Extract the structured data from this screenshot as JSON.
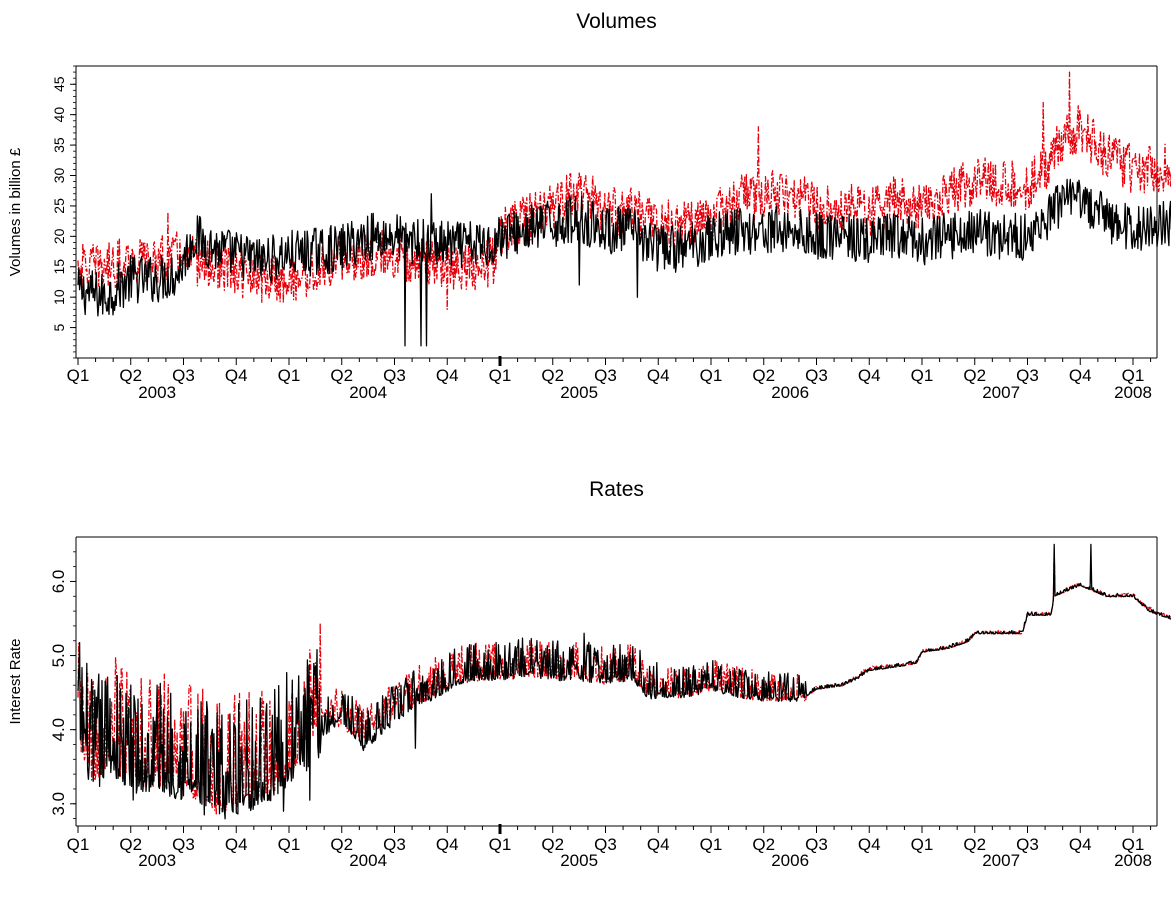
{
  "colors": {
    "primary_series": "#000000",
    "secondary_series": "#e8000b",
    "axis": "#000000",
    "background": "#ffffff"
  },
  "chart_data": [
    {
      "type": "line",
      "title": "Volumes",
      "xlabel": "",
      "ylabel": "Volumes in billion £",
      "ylim": [
        0,
        48
      ],
      "yticks": [
        5,
        10,
        15,
        20,
        25,
        30,
        35,
        40,
        45
      ],
      "ytick_orientation": "rotated",
      "grid": false,
      "legend": "none",
      "x_axis": {
        "quarter_labels": [
          "Q1",
          "Q2",
          "Q3",
          "Q4",
          "Q1",
          "Q2",
          "Q3",
          "Q4",
          "Q1",
          "Q2",
          "Q3",
          "Q4",
          "Q1",
          "Q2",
          "Q3",
          "Q4",
          "Q1",
          "Q2",
          "Q3",
          "Q4",
          "Q1"
        ],
        "year_labels": [
          {
            "label": "2003",
            "under_quarter": 1.5
          },
          {
            "label": "2004",
            "under_quarter": 5.5
          },
          {
            "label": "2005",
            "under_quarter": 9.5
          },
          {
            "label": "2006",
            "under_quarter": 13.5
          },
          {
            "label": "2007",
            "under_quarter": 17.5
          },
          {
            "label": "2008",
            "under_quarter": 20.0
          }
        ],
        "major_tick_quarter": 8,
        "range_quarters": [
          0,
          21.4
        ]
      },
      "series_meta": [
        {
          "color": "#000000",
          "dash": "solid"
        },
        {
          "color": "#e8000b",
          "dash": "dashdot"
        }
      ],
      "series": [
        {
          "values": [
            [
              0.1,
              11
            ],
            [
              0.5,
              10
            ],
            [
              1.0,
              13
            ],
            [
              1.5,
              13
            ],
            [
              1.9,
              14
            ],
            [
              2.2,
              20
            ],
            [
              2.6,
              18
            ],
            [
              3.0,
              17
            ],
            [
              3.5,
              16
            ],
            [
              4.0,
              17
            ],
            [
              4.5,
              17.5
            ],
            [
              5.0,
              18
            ],
            [
              5.5,
              20
            ],
            [
              6.0,
              20
            ],
            [
              6.5,
              19
            ],
            [
              7.0,
              18.5
            ],
            [
              7.5,
              18.5
            ],
            [
              7.9,
              19
            ],
            [
              8.0,
              20
            ],
            [
              8.5,
              21
            ],
            [
              9.0,
              22
            ],
            [
              9.5,
              23
            ],
            [
              10.0,
              21
            ],
            [
              10.5,
              21
            ],
            [
              11.0,
              18
            ],
            [
              11.5,
              18
            ],
            [
              12.0,
              20
            ],
            [
              12.5,
              21
            ],
            [
              13.0,
              21
            ],
            [
              13.5,
              21
            ],
            [
              14.0,
              20
            ],
            [
              14.5,
              20
            ],
            [
              15.0,
              19
            ],
            [
              15.5,
              20
            ],
            [
              16.0,
              19
            ],
            [
              16.5,
              20
            ],
            [
              17.0,
              21
            ],
            [
              17.5,
              20
            ],
            [
              18.0,
              20
            ],
            [
              18.3,
              22
            ],
            [
              18.6,
              25
            ],
            [
              19.0,
              26
            ],
            [
              19.5,
              23
            ],
            [
              20.0,
              21
            ],
            [
              20.5,
              22
            ],
            [
              21.0,
              22
            ],
            [
              21.3,
              24
            ]
          ],
          "spikes": [
            [
              6.2,
              2
            ],
            [
              6.5,
              2
            ],
            [
              6.6,
              2
            ],
            [
              6.7,
              27
            ],
            [
              9.5,
              12
            ],
            [
              10.6,
              10
            ]
          ]
        },
        {
          "values": [
            [
              0.1,
              15
            ],
            [
              0.5,
              15
            ],
            [
              1.0,
              16
            ],
            [
              1.5,
              16
            ],
            [
              1.9,
              17
            ],
            [
              2.2,
              16
            ],
            [
              2.6,
              15
            ],
            [
              3.0,
              14
            ],
            [
              3.5,
              13
            ],
            [
              4.0,
              13
            ],
            [
              4.5,
              14
            ],
            [
              5.0,
              16
            ],
            [
              5.5,
              17
            ],
            [
              6.0,
              17
            ],
            [
              6.5,
              16
            ],
            [
              7.0,
              15
            ],
            [
              7.5,
              15
            ],
            [
              7.9,
              16
            ],
            [
              8.0,
              21
            ],
            [
              8.5,
              23
            ],
            [
              9.0,
              25
            ],
            [
              9.5,
              28
            ],
            [
              10.0,
              24
            ],
            [
              10.5,
              24
            ],
            [
              11.0,
              22
            ],
            [
              11.5,
              22
            ],
            [
              12.0,
              23
            ],
            [
              12.5,
              26
            ],
            [
              13.0,
              27
            ],
            [
              13.5,
              27
            ],
            [
              14.0,
              25
            ],
            [
              14.5,
              25
            ],
            [
              15.0,
              24
            ],
            [
              15.5,
              26
            ],
            [
              16.0,
              25
            ],
            [
              16.5,
              27
            ],
            [
              17.0,
              29
            ],
            [
              17.5,
              29
            ],
            [
              18.0,
              28
            ],
            [
              18.3,
              31
            ],
            [
              18.6,
              35
            ],
            [
              19.0,
              38
            ],
            [
              19.5,
              33
            ],
            [
              20.0,
              31
            ],
            [
              20.5,
              31
            ],
            [
              21.0,
              33
            ],
            [
              21.3,
              35
            ]
          ],
          "spikes": [
            [
              1.7,
              24
            ],
            [
              7.0,
              8
            ],
            [
              12.9,
              38
            ],
            [
              18.3,
              42
            ],
            [
              18.8,
              47
            ]
          ]
        }
      ]
    },
    {
      "type": "line",
      "title": "Rates",
      "xlabel": "",
      "ylabel": "Interest Rate",
      "ylim": [
        2.7,
        6.6
      ],
      "yticks": [
        "3.0",
        "4.0",
        "5.0",
        "6.0"
      ],
      "ytick_orientation": "rotated",
      "grid": false,
      "legend": "none",
      "x_axis": {
        "quarter_labels": [
          "Q1",
          "Q2",
          "Q3",
          "Q4",
          "Q1",
          "Q2",
          "Q3",
          "Q4",
          "Q1",
          "Q2",
          "Q3",
          "Q4",
          "Q1",
          "Q2",
          "Q3",
          "Q4",
          "Q1",
          "Q2",
          "Q3",
          "Q4",
          "Q1"
        ],
        "year_labels": [
          {
            "label": "2003",
            "under_quarter": 1.5
          },
          {
            "label": "2004",
            "under_quarter": 5.5
          },
          {
            "label": "2005",
            "under_quarter": 9.5
          },
          {
            "label": "2006",
            "under_quarter": 13.5
          },
          {
            "label": "2007",
            "under_quarter": 17.5
          },
          {
            "label": "2008",
            "under_quarter": 20.0
          }
        ],
        "major_tick_quarter": 8,
        "range_quarters": [
          0,
          21.4
        ]
      },
      "series_meta": [
        {
          "color": "#000000",
          "dash": "solid"
        },
        {
          "color": "#e8000b",
          "dash": "dashdot"
        }
      ],
      "series": [
        {
          "values": [
            [
              0.0,
              4.2
            ],
            [
              0.3,
              3.4
            ],
            [
              0.6,
              3.8
            ],
            [
              1.0,
              3.4
            ],
            [
              1.5,
              3.5
            ],
            [
              2.0,
              3.4
            ],
            [
              2.3,
              3.3
            ],
            [
              2.6,
              3.1
            ],
            [
              3.0,
              3.2
            ],
            [
              3.5,
              3.3
            ],
            [
              4.0,
              3.6
            ],
            [
              4.5,
              3.9
            ],
            [
              5.0,
              4.2
            ],
            [
              5.4,
              3.8
            ],
            [
              5.9,
              4.1
            ],
            [
              6.4,
              4.4
            ],
            [
              6.8,
              4.5
            ],
            [
              7.2,
              4.7
            ],
            [
              7.6,
              4.75
            ],
            [
              8.0,
              4.75
            ],
            [
              8.5,
              4.8
            ],
            [
              9.0,
              4.75
            ],
            [
              9.5,
              4.75
            ],
            [
              10.0,
              4.7
            ],
            [
              10.5,
              4.75
            ],
            [
              10.8,
              4.5
            ],
            [
              11.2,
              4.5
            ],
            [
              11.6,
              4.5
            ],
            [
              12.0,
              4.6
            ],
            [
              12.5,
              4.5
            ],
            [
              13.0,
              4.45
            ],
            [
              13.5,
              4.45
            ],
            [
              13.8,
              4.45
            ],
            [
              14.0,
              4.55
            ],
            [
              14.5,
              4.6
            ],
            [
              14.8,
              4.7
            ],
            [
              15.0,
              4.8
            ],
            [
              15.5,
              4.85
            ],
            [
              15.9,
              4.9
            ],
            [
              16.0,
              5.05
            ],
            [
              16.5,
              5.1
            ],
            [
              16.9,
              5.2
            ],
            [
              17.0,
              5.3
            ],
            [
              17.5,
              5.3
            ],
            [
              17.9,
              5.3
            ],
            [
              18.0,
              5.55
            ],
            [
              18.45,
              5.55
            ],
            [
              18.5,
              5.8
            ],
            [
              19.0,
              5.95
            ],
            [
              19.5,
              5.8
            ],
            [
              20.0,
              5.8
            ],
            [
              20.3,
              5.6
            ],
            [
              20.7,
              5.5
            ],
            [
              21.0,
              5.5
            ],
            [
              21.4,
              5.52
            ]
          ],
          "spikes": [
            [
              0.4,
              4.75
            ],
            [
              1.0,
              4.6
            ],
            [
              1.5,
              4.6
            ],
            [
              2.4,
              2.85
            ],
            [
              3.2,
              4.4
            ],
            [
              3.9,
              2.9
            ],
            [
              4.4,
              3.05
            ],
            [
              4.5,
              4.85
            ],
            [
              6.4,
              3.75
            ],
            [
              8.7,
              5.2
            ],
            [
              9.6,
              5.3
            ],
            [
              18.5,
              6.5
            ],
            [
              19.2,
              6.5
            ]
          ]
        },
        {
          "values": [
            [
              0.0,
              4.1
            ],
            [
              0.3,
              3.5
            ],
            [
              0.6,
              3.9
            ],
            [
              1.0,
              3.5
            ],
            [
              1.5,
              3.6
            ],
            [
              2.0,
              3.5
            ],
            [
              2.3,
              3.4
            ],
            [
              2.6,
              3.2
            ],
            [
              3.0,
              3.3
            ],
            [
              3.5,
              3.4
            ],
            [
              4.0,
              3.7
            ],
            [
              4.5,
              4.3
            ],
            [
              5.0,
              4.1
            ],
            [
              5.4,
              3.9
            ],
            [
              5.9,
              4.2
            ],
            [
              6.4,
              4.4
            ],
            [
              6.8,
              4.55
            ],
            [
              7.2,
              4.7
            ],
            [
              7.6,
              4.75
            ],
            [
              8.0,
              4.75
            ],
            [
              8.5,
              4.8
            ],
            [
              9.0,
              4.75
            ],
            [
              9.5,
              4.75
            ],
            [
              10.0,
              4.7
            ],
            [
              10.5,
              4.75
            ],
            [
              10.8,
              4.55
            ],
            [
              11.2,
              4.5
            ],
            [
              11.6,
              4.5
            ],
            [
              12.0,
              4.6
            ],
            [
              12.5,
              4.5
            ],
            [
              13.0,
              4.45
            ],
            [
              13.5,
              4.45
            ],
            [
              13.8,
              4.45
            ],
            [
              14.0,
              4.55
            ],
            [
              14.5,
              4.6
            ],
            [
              14.8,
              4.72
            ],
            [
              15.0,
              4.82
            ],
            [
              15.5,
              4.85
            ],
            [
              15.9,
              4.9
            ],
            [
              16.0,
              5.05
            ],
            [
              16.5,
              5.1
            ],
            [
              16.9,
              5.2
            ],
            [
              17.0,
              5.3
            ],
            [
              17.5,
              5.3
            ],
            [
              17.9,
              5.3
            ],
            [
              18.0,
              5.55
            ],
            [
              18.45,
              5.55
            ],
            [
              18.5,
              5.8
            ],
            [
              19.0,
              5.95
            ],
            [
              19.5,
              5.8
            ],
            [
              20.0,
              5.8
            ],
            [
              20.3,
              5.62
            ],
            [
              20.7,
              5.5
            ],
            [
              21.0,
              5.5
            ],
            [
              21.4,
              5.52
            ]
          ],
          "spikes": [
            [
              4.55,
              4.7
            ],
            [
              5.6,
              4.1
            ],
            [
              18.5,
              6.45
            ]
          ]
        }
      ]
    }
  ]
}
